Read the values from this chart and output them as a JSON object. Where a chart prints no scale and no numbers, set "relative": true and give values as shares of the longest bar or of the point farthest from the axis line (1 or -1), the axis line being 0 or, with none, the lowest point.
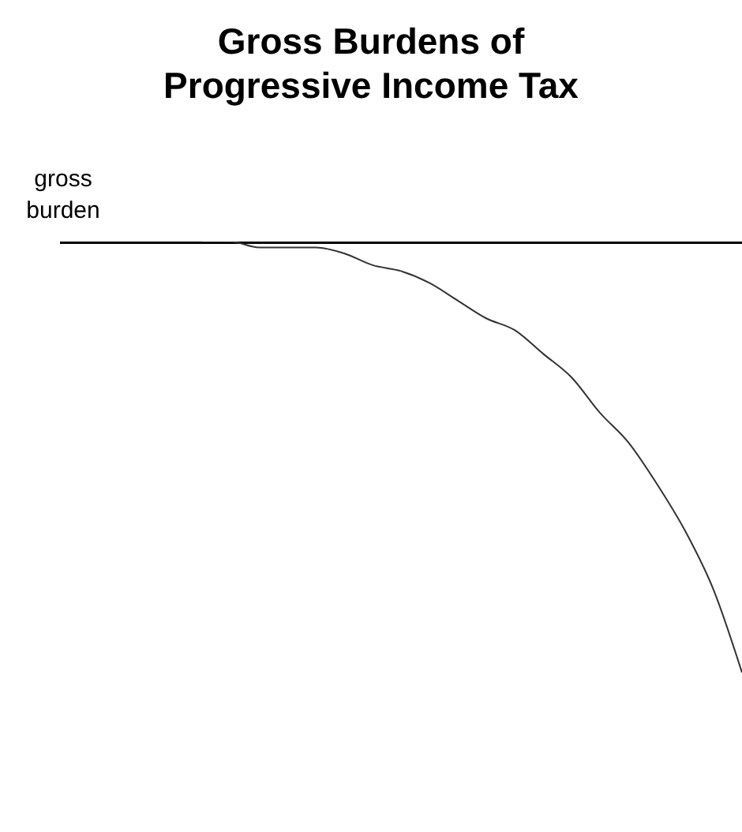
{
  "chart_data": {
    "type": "line",
    "title": "Gross Burdens of Progressive Income Tax",
    "ylabel": "gross burden",
    "relative": true,
    "marker": "none",
    "categories": [
      null,
      null,
      null,
      null,
      null,
      null,
      null,
      null,
      null,
      null,
      null,
      null,
      null,
      null,
      null,
      null,
      null,
      null,
      null,
      null,
      null,
      null,
      null,
      null,
      null
    ],
    "series": [
      {
        "color": "#000000",
        "values": [
          1,
          1,
          1,
          1,
          1,
          1,
          1,
          1,
          1,
          1,
          1,
          1,
          1,
          1,
          1,
          1,
          1,
          1,
          1,
          1,
          1,
          1,
          1,
          1,
          1
        ]
      },
      {
        "color": "#333333",
        "values": [
          null,
          null,
          null,
          null,
          null,
          1,
          1,
          0.99,
          0.99,
          0.99,
          0.98,
          0.96,
          0.95,
          0.93,
          0.9,
          0.87,
          0.85,
          0.81,
          0.77,
          0.71,
          0.66,
          0.59,
          0.51,
          0.41,
          0.27
        ]
      }
    ]
  }
}
